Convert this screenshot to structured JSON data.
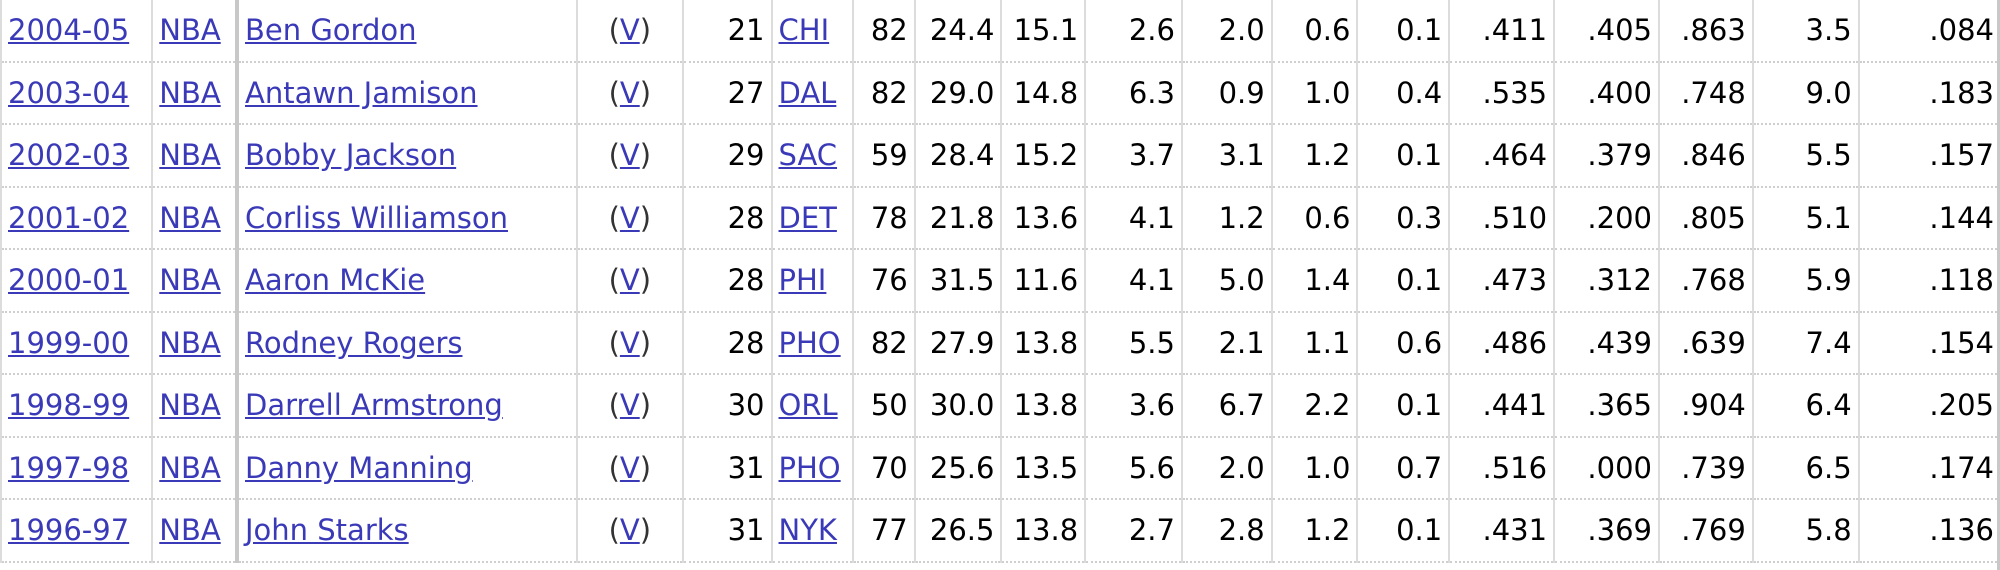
{
  "rows": [
    {
      "season": "2004-05",
      "league": "NBA",
      "player": "Ben Gordon",
      "v": "V",
      "age": "21",
      "team": "CHI",
      "g": "82",
      "mp": "24.4",
      "pts": "15.1",
      "trb": "2.6",
      "ast": "2.0",
      "stl": "0.6",
      "blk": "0.1",
      "fg": ".411",
      "fg3": ".405",
      "ft": ".863",
      "ws": "3.5",
      "ws48": ".084"
    },
    {
      "season": "2003-04",
      "league": "NBA",
      "player": "Antawn Jamison",
      "v": "V",
      "age": "27",
      "team": "DAL",
      "g": "82",
      "mp": "29.0",
      "pts": "14.8",
      "trb": "6.3",
      "ast": "0.9",
      "stl": "1.0",
      "blk": "0.4",
      "fg": ".535",
      "fg3": ".400",
      "ft": ".748",
      "ws": "9.0",
      "ws48": ".183"
    },
    {
      "season": "2002-03",
      "league": "NBA",
      "player": "Bobby Jackson",
      "v": "V",
      "age": "29",
      "team": "SAC",
      "g": "59",
      "mp": "28.4",
      "pts": "15.2",
      "trb": "3.7",
      "ast": "3.1",
      "stl": "1.2",
      "blk": "0.1",
      "fg": ".464",
      "fg3": ".379",
      "ft": ".846",
      "ws": "5.5",
      "ws48": ".157"
    },
    {
      "season": "2001-02",
      "league": "NBA",
      "player": "Corliss Williamson",
      "v": "V",
      "age": "28",
      "team": "DET",
      "g": "78",
      "mp": "21.8",
      "pts": "13.6",
      "trb": "4.1",
      "ast": "1.2",
      "stl": "0.6",
      "blk": "0.3",
      "fg": ".510",
      "fg3": ".200",
      "ft": ".805",
      "ws": "5.1",
      "ws48": ".144"
    },
    {
      "season": "2000-01",
      "league": "NBA",
      "player": "Aaron McKie",
      "v": "V",
      "age": "28",
      "team": "PHI",
      "g": "76",
      "mp": "31.5",
      "pts": "11.6",
      "trb": "4.1",
      "ast": "5.0",
      "stl": "1.4",
      "blk": "0.1",
      "fg": ".473",
      "fg3": ".312",
      "ft": ".768",
      "ws": "5.9",
      "ws48": ".118"
    },
    {
      "season": "1999-00",
      "league": "NBA",
      "player": "Rodney Rogers",
      "v": "V",
      "age": "28",
      "team": "PHO",
      "g": "82",
      "mp": "27.9",
      "pts": "13.8",
      "trb": "5.5",
      "ast": "2.1",
      "stl": "1.1",
      "blk": "0.6",
      "fg": ".486",
      "fg3": ".439",
      "ft": ".639",
      "ws": "7.4",
      "ws48": ".154"
    },
    {
      "season": "1998-99",
      "league": "NBA",
      "player": "Darrell Armstrong",
      "v": "V",
      "age": "30",
      "team": "ORL",
      "g": "50",
      "mp": "30.0",
      "pts": "13.8",
      "trb": "3.6",
      "ast": "6.7",
      "stl": "2.2",
      "blk": "0.1",
      "fg": ".441",
      "fg3": ".365",
      "ft": ".904",
      "ws": "6.4",
      "ws48": ".205"
    },
    {
      "season": "1997-98",
      "league": "NBA",
      "player": "Danny Manning",
      "v": "V",
      "age": "31",
      "team": "PHO",
      "g": "70",
      "mp": "25.6",
      "pts": "13.5",
      "trb": "5.6",
      "ast": "2.0",
      "stl": "1.0",
      "blk": "0.7",
      "fg": ".516",
      "fg3": ".000",
      "ft": ".739",
      "ws": "6.5",
      "ws48": ".174"
    },
    {
      "season": "1996-97",
      "league": "NBA",
      "player": "John Starks",
      "v": "V",
      "age": "31",
      "team": "NYK",
      "g": "77",
      "mp": "26.5",
      "pts": "13.8",
      "trb": "2.7",
      "ast": "2.8",
      "stl": "1.2",
      "blk": "0.1",
      "fg": ".431",
      "fg3": ".369",
      "ft": ".769",
      "ws": "5.8",
      "ws48": ".136"
    }
  ]
}
